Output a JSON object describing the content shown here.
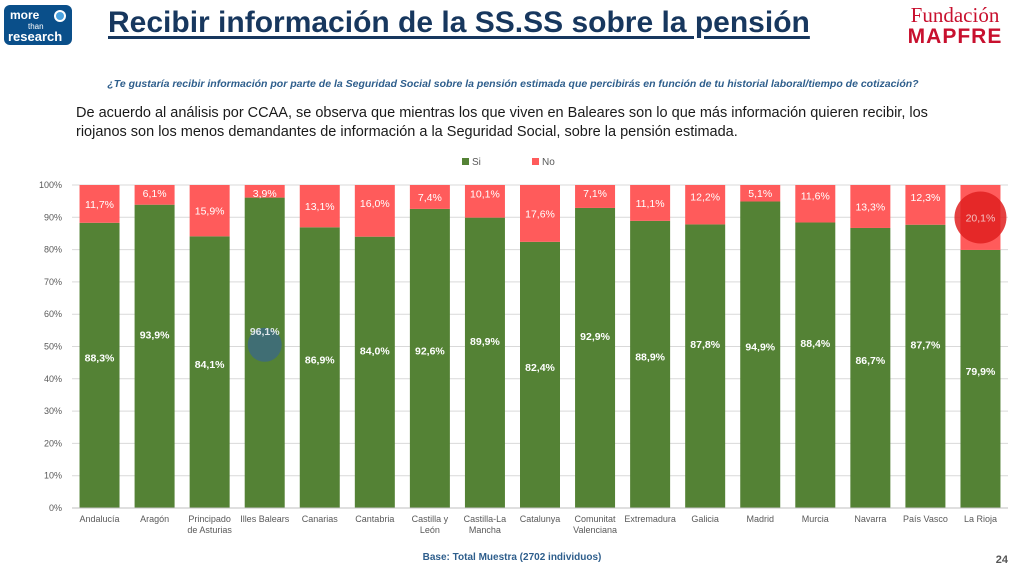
{
  "header": {
    "logo_lines": [
      "more",
      "than",
      "research"
    ],
    "title": "Recibir información de la SS.SS sobre la pensión",
    "brand_line1": "Fundación",
    "brand_line2": "MAPFRE"
  },
  "question": "¿Te gustaría recibir información por parte de la Seguridad Social sobre la pensión estimada que percibirás en función de tu historial laboral/tiempo de cotización?",
  "summary": "De acuerdo al análisis por CCAA, se observa que mientras los que viven en Baleares son lo que más información quieren recibir, los riojanos son los menos demandantes de información a la Seguridad Social, sobre la pensión estimada.",
  "footer": {
    "base_note": "Base: Total Muestra (2702 individuos)",
    "page_number": "24"
  },
  "colors": {
    "si": "#548235",
    "no": "#ff5b5b",
    "title": "#17375e",
    "brand": "#c8102e",
    "note": "#2e5e8c",
    "highlight_balearic": "#3d6b7f",
    "highlight_rioja": "#e02020"
  },
  "chart_data": {
    "type": "bar",
    "stacked": true,
    "percent": true,
    "categories": [
      "Andalucía",
      "Aragón",
      "Principado de Asturias",
      "Illes Balears",
      "Canarias",
      "Cantabria",
      "Castilla y León",
      "Castilla-La Mancha",
      "Catalunya",
      "Comunitat Valenciana",
      "Extremadura",
      "Galicia",
      "Madrid",
      "Murcia",
      "Navarra",
      "País Vasco",
      "La Rioja"
    ],
    "category_lines": [
      [
        "Andalucía"
      ],
      [
        "Aragón"
      ],
      [
        "Principado",
        "de Asturias"
      ],
      [
        "Illes Balears"
      ],
      [
        "Canarias"
      ],
      [
        "Cantabria"
      ],
      [
        "Castilla y",
        "León"
      ],
      [
        "Castilla-La",
        "Mancha"
      ],
      [
        "Catalunya"
      ],
      [
        "Comunitat",
        "Valenciana"
      ],
      [
        "Extremadura"
      ],
      [
        "Galicia"
      ],
      [
        "Madrid"
      ],
      [
        "Murcia"
      ],
      [
        "Navarra"
      ],
      [
        "País Vasco"
      ],
      [
        "La Rioja"
      ]
    ],
    "series": [
      {
        "name": "Si",
        "values": [
          88.3,
          93.9,
          84.1,
          96.1,
          86.9,
          84.0,
          92.6,
          89.9,
          82.4,
          92.9,
          88.9,
          87.8,
          94.9,
          88.4,
          86.7,
          87.7,
          79.9
        ],
        "labels": [
          "88,3%",
          "93,9%",
          "84,1%",
          "96,1%",
          "86,9%",
          "84,0%",
          "92,6%",
          "89,9%",
          "82,4%",
          "92,9%",
          "88,9%",
          "87,8%",
          "94,9%",
          "88,4%",
          "86,7%",
          "87,7%",
          "79,9%"
        ]
      },
      {
        "name": "No",
        "values": [
          11.7,
          6.1,
          15.9,
          3.9,
          13.1,
          16.0,
          7.4,
          10.1,
          17.6,
          7.1,
          11.1,
          12.2,
          5.1,
          11.6,
          13.3,
          12.3,
          20.1
        ],
        "labels": [
          "11,7%",
          "6,1%",
          "15,9%",
          "3,9%",
          "13,1%",
          "16,0%",
          "7,4%",
          "10,1%",
          "17,6%",
          "7,1%",
          "11,1%",
          "12,2%",
          "5,1%",
          "11,6%",
          "13,3%",
          "12,3%",
          "20,1%"
        ]
      }
    ],
    "ylim": [
      0,
      100
    ],
    "yticks": [
      "0%",
      "10%",
      "20%",
      "30%",
      "40%",
      "50%",
      "60%",
      "70%",
      "80%",
      "90%",
      "100%"
    ],
    "grid": true,
    "legend_position": "top",
    "highlights": [
      {
        "category": "Illes Balears",
        "series": "Si"
      },
      {
        "category": "La Rioja",
        "series": "No"
      }
    ]
  }
}
